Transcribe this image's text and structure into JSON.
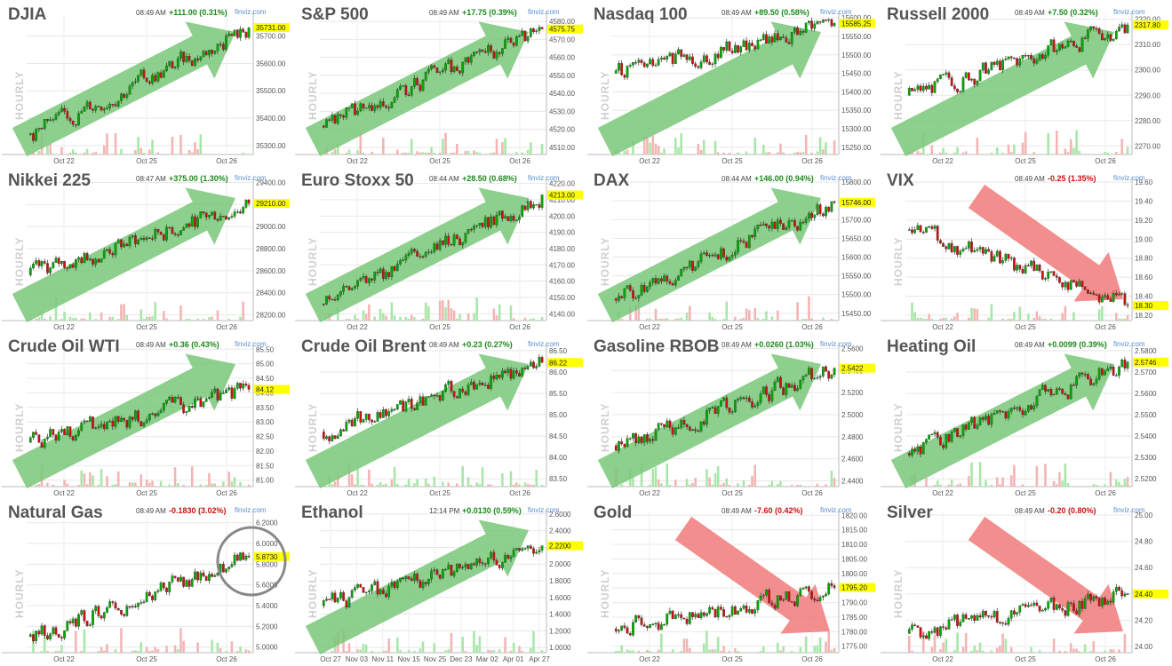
{
  "colors": {
    "up": "#00aa00",
    "down": "#cc1111",
    "pos_change": "#1a8a1a",
    "neg_change": "#cc1111",
    "green_arrow": "#79c779",
    "red_arrow": "#f07a7a",
    "last_price_bg": "#ffff00",
    "volume_up": "#a8e6a8",
    "volume_down": "#f3b4b4"
  },
  "source_label": "finviz.com",
  "axis_watermark": "HOURLY",
  "chart_data": [
    {
      "name": "DJIA",
      "time": "08:49 AM",
      "change": "+111.00 (0.31%)",
      "direction": "up",
      "type": "candlestick",
      "yticks": [
        "35700.00",
        "35600.00",
        "35500.00",
        "35400.00",
        "35300.00"
      ],
      "ylim": [
        35280,
        35780
      ],
      "last": "35731.00",
      "xticks": [
        "Oct 22",
        "Oct 25",
        "Oct 26"
      ],
      "trend_arrow": "up",
      "start": 35340
    },
    {
      "name": "S&P 500",
      "time": "08:49 AM",
      "change": "+17.75 (0.39%)",
      "direction": "up",
      "type": "candlestick",
      "yticks": [
        "4580.00",
        "4570.00",
        "4560.00",
        "4550.00",
        "4540.00",
        "4530.00",
        "4520.00",
        "4510.00"
      ],
      "ylim": [
        4508,
        4584
      ],
      "last": "4575.75",
      "xticks": [
        "Oct 22",
        "Oct 25",
        "Oct 26"
      ],
      "trend_arrow": "up",
      "start": 4522
    },
    {
      "name": "Nasdaq 100",
      "time": "08:49 AM",
      "change": "+89.50 (0.58%)",
      "direction": "up",
      "type": "candlestick",
      "yticks": [
        "15600.00",
        "15550.00",
        "15500.00",
        "15450.00",
        "15400.00",
        "15350.00",
        "15300.00",
        "15250.00"
      ],
      "ylim": [
        15240,
        15610
      ],
      "last": "15585.25",
      "xticks": [
        "Oct 22",
        "Oct 25",
        "Oct 26"
      ],
      "trend_arrow": "up",
      "start": 15450
    },
    {
      "name": "Russell 2000",
      "time": "08:49 AM",
      "change": "+7.50 (0.32%)",
      "direction": "up",
      "type": "candlestick",
      "yticks": [
        "2320.00",
        "2310.00",
        "2300.00",
        "2290.00",
        "2280.00",
        "2270.00"
      ],
      "ylim": [
        2268,
        2322
      ],
      "last": "2317.80",
      "xticks": [
        "Oct 22",
        "Oct 25",
        "Oct 26"
      ],
      "trend_arrow": "up",
      "start": 2290
    },
    {
      "name": "Nikkei 225",
      "time": "08:47 AM",
      "change": "+375.00 (1.30%)",
      "direction": "up",
      "type": "candlestick",
      "yticks": [
        "29400.00",
        "29200.00",
        "29000.00",
        "28800.00",
        "28600.00",
        "28400.00",
        "28200.00"
      ],
      "ylim": [
        28180,
        29420
      ],
      "last": "29210.00",
      "xticks": [
        "Oct 22",
        "Oct 25",
        "Oct 26"
      ],
      "trend_arrow": "up",
      "start": 28560
    },
    {
      "name": "Euro Stoxx 50",
      "time": "08:44 AM",
      "change": "+28.50 (0.68%)",
      "direction": "up",
      "type": "candlestick",
      "yticks": [
        "4220.00",
        "4210.00",
        "4200.00",
        "4190.00",
        "4180.00",
        "4170.00",
        "4160.00",
        "4150.00",
        "4140.00"
      ],
      "ylim": [
        4138,
        4222
      ],
      "last": "4213.00",
      "xticks": [
        "Oct 22",
        "Oct 25",
        "Oct 26"
      ],
      "trend_arrow": "up",
      "start": 4146
    },
    {
      "name": "DAX",
      "time": "08:44 AM",
      "change": "+146.00 (0.94%)",
      "direction": "up",
      "type": "candlestick",
      "yticks": [
        "15800.00",
        "15750.00",
        "15700.00",
        "15650.00",
        "15600.00",
        "15550.00",
        "15500.00",
        "15450.00"
      ],
      "ylim": [
        15440,
        15805
      ],
      "last": "15746.00",
      "xticks": [
        "Oct 22",
        "Oct 25",
        "Oct 26"
      ],
      "trend_arrow": "up",
      "start": 15490
    },
    {
      "name": "VIX",
      "time": "08:49 AM",
      "change": "-0.25 (1.35%)",
      "direction": "down",
      "type": "candlestick",
      "yticks": [
        "19.60",
        "19.40",
        "19.20",
        "19.00",
        "18.80",
        "18.60",
        "18.40",
        "18.20"
      ],
      "ylim": [
        18.18,
        19.62
      ],
      "last": "18.30",
      "xticks": [
        "Oct 22",
        "Oct 25",
        "Oct 26"
      ],
      "trend_arrow": "down",
      "start": 19.1
    },
    {
      "name": "Crude Oil WTI",
      "time": "08:49 AM",
      "change": "+0.36 (0.43%)",
      "direction": "up",
      "type": "candlestick",
      "yticks": [
        "85.50",
        "85.00",
        "84.50",
        "84.00",
        "83.50",
        "83.00",
        "82.50",
        "82.00",
        "81.50",
        "81.00"
      ],
      "ylim": [
        80.9,
        85.6
      ],
      "last": "84.12",
      "xticks": [
        "Oct 22",
        "Oct 25",
        "Oct 26"
      ],
      "trend_arrow": "up",
      "start": 82.3
    },
    {
      "name": "Crude Oil Brent",
      "time": "08:49 AM",
      "change": "+0.23 (0.27%)",
      "direction": "up",
      "type": "candlestick",
      "yticks": [
        "86.50",
        "86.00",
        "85.50",
        "85.00",
        "84.50",
        "84.00",
        "83.50"
      ],
      "ylim": [
        83.4,
        86.6
      ],
      "last": "86.22",
      "xticks": [
        "Oct 22",
        "Oct 25",
        "Oct 26"
      ],
      "trend_arrow": "up",
      "start": 84.6
    },
    {
      "name": "Gasoline RBOB",
      "time": "08:49 AM",
      "change": "+0.0260 (1.03%)",
      "direction": "up",
      "type": "candlestick",
      "yticks": [
        "2.5600",
        "2.5400",
        "2.5200",
        "2.5000",
        "2.4800",
        "2.4600",
        "2.4400"
      ],
      "ylim": [
        2.438,
        2.562
      ],
      "last": "2.5422",
      "xticks": [
        "Oct 22",
        "Oct 25",
        "Oct 26"
      ],
      "trend_arrow": "up",
      "start": 2.472
    },
    {
      "name": "Heating Oil",
      "time": "08:49 AM",
      "change": "+0.0099 (0.39%)",
      "direction": "up",
      "type": "candlestick",
      "yticks": [
        "2.5800",
        "2.5700",
        "2.5600",
        "2.5500",
        "2.5400",
        "2.5300",
        "2.5200"
      ],
      "ylim": [
        2.518,
        2.582
      ],
      "last": "2.5746",
      "xticks": [
        "Oct 22",
        "Oct 25",
        "Oct 26"
      ],
      "trend_arrow": "up",
      "start": 2.532
    },
    {
      "name": "Natural Gas",
      "time": "08:49 AM",
      "change": "-0.1830 (3.02%)",
      "direction": "down",
      "type": "candlestick",
      "yticks": [
        "6.2000",
        "6.0000",
        "5.8000",
        "5.6000",
        "5.4000",
        "5.2000",
        "5.0000"
      ],
      "ylim": [
        4.98,
        6.3
      ],
      "last": "5.8730",
      "xticks": [
        "Oct 22",
        "Oct 25",
        "Oct 26"
      ],
      "trend_arrow": "none",
      "start": 5.1
    },
    {
      "name": "Ethanol",
      "time": "12:14 PM",
      "change": "+0.0130 (0.59%)",
      "direction": "up",
      "type": "candlestick",
      "yticks": [
        "2.6000",
        "2.4000",
        "2.2000",
        "2.0000",
        "1.8000",
        "1.6000",
        "1.4000",
        "1.2000",
        "1.0000"
      ],
      "ylim": [
        0.98,
        2.62
      ],
      "last": "2.2200",
      "xticks": [
        "Oct 27",
        "Nov 03",
        "Nov 11",
        "Nov 15",
        "Nov 25",
        "Dec 23",
        "Mar 02",
        "Apr 01",
        "Apr 27"
      ],
      "trend_arrow": "up",
      "start": 1.5
    },
    {
      "name": "Gold",
      "time": "08:49 AM",
      "change": "-7.60 (0.42%)",
      "direction": "down",
      "type": "candlestick",
      "yticks": [
        "1820.00",
        "1815.00",
        "1810.00",
        "1805.00",
        "1800.00",
        "1795.00",
        "1790.00",
        "1785.00",
        "1780.00",
        "1775.00"
      ],
      "ylim": [
        1774,
        1821
      ],
      "last": "1795.20",
      "xticks": [
        "Oct 22",
        "Oct 25",
        "Oct 26"
      ],
      "trend_arrow": "down",
      "start": 1781
    },
    {
      "name": "Silver",
      "time": "08:49 AM",
      "change": "-0.20 (0.80%)",
      "direction": "down",
      "type": "candlestick",
      "yticks": [
        "25.00",
        "24.80",
        "24.60",
        "24.40",
        "24.20",
        "24.00"
      ],
      "ylim": [
        23.98,
        25.02
      ],
      "last": "24.40",
      "xticks": [
        "Oct 22",
        "Oct 25",
        "Oct 26"
      ],
      "trend_arrow": "down",
      "start": 24.1
    }
  ]
}
